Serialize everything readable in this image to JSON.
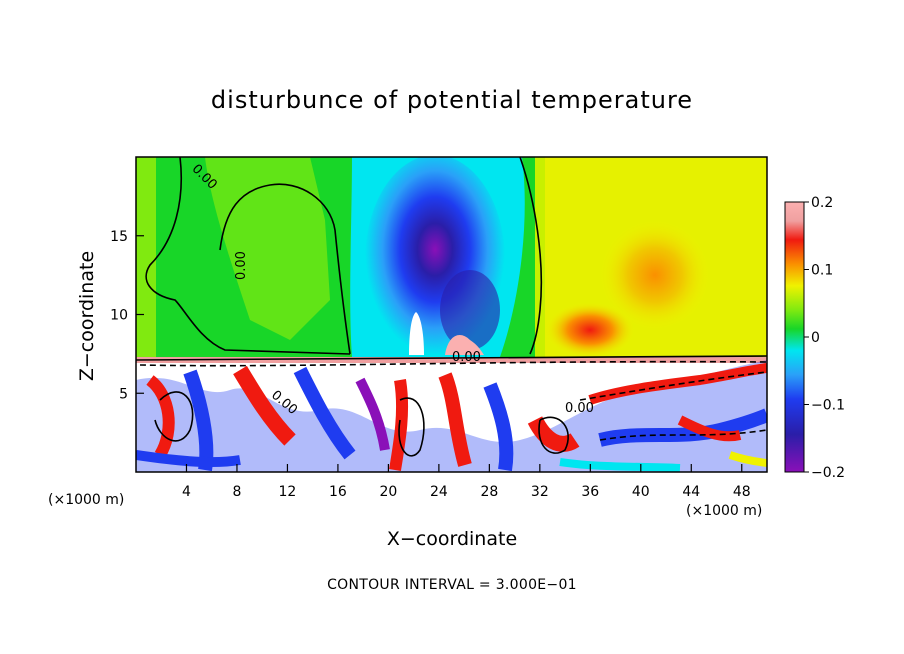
{
  "title": "disturbunce of potential temperature",
  "xlabel": "X−coordinate",
  "ylabel": "Z−coordinate",
  "x_unit_left": "(×1000 m)",
  "x_unit_right": "(×1000 m)",
  "contour_note": "CONTOUR INTERVAL = 3.000E−01",
  "contour_label": "0.00",
  "colors": {
    "purple": "#8a10b8",
    "navy": "#2a1ea8",
    "blue": "#1f3cf0",
    "azure": "#2aa0f8",
    "cyan": "#00e6f0",
    "green": "#18d628",
    "lime": "#80ea10",
    "yellow": "#f0f200",
    "orange": "#fa9000",
    "red": "#f01a10",
    "pink": "#fb8a8a",
    "white": "#ffffff"
  },
  "chart_data": {
    "type": "heatmap",
    "title": "disturbunce of potential temperature",
    "xlabel": "X−coordinate",
    "ylabel": "Z−coordinate",
    "x_unit": "(×1000 m)",
    "xlim": [
      0,
      50
    ],
    "ylim": [
      0,
      20
    ],
    "x_ticks": [
      4,
      8,
      12,
      16,
      20,
      24,
      28,
      32,
      36,
      40,
      44,
      48
    ],
    "y_ticks": [
      5,
      10,
      15
    ],
    "colorbar": {
      "range": [
        -0.2,
        0.2
      ],
      "ticks": [
        "0.2",
        "0.1",
        "0",
        "−0.1",
        "−0.2"
      ]
    },
    "contour_interval": 0.3
  }
}
